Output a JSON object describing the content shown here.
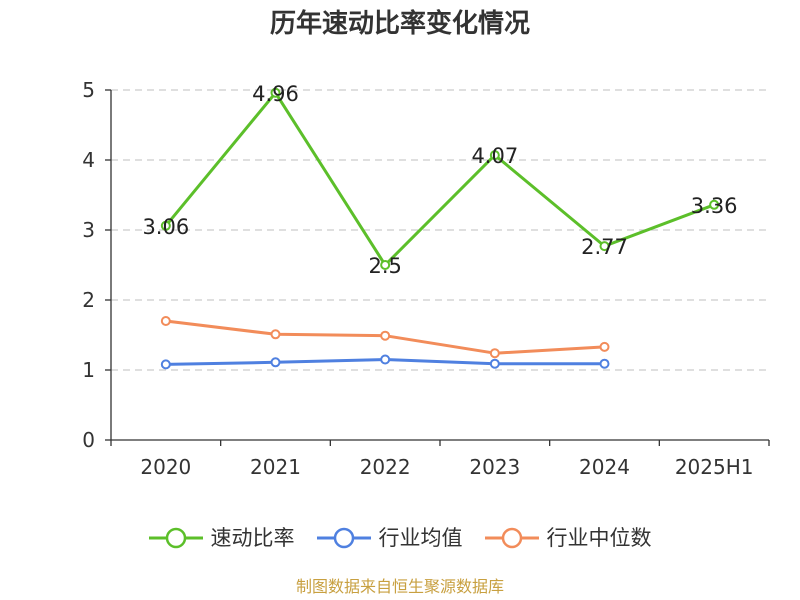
{
  "title": "历年速动比率变化情况",
  "footer": "制图数据来自恒生聚源数据库",
  "colors": {
    "grid": "#cccccc",
    "axis": "#333333",
    "footer": "#c8a040"
  },
  "chart_data": {
    "type": "line",
    "title": "历年速动比率变化情况",
    "categories": [
      "2020",
      "2021",
      "2022",
      "2023",
      "2024",
      "2025H1"
    ],
    "ylim": [
      0,
      5
    ],
    "yticks": [
      0,
      1,
      2,
      3,
      4,
      5
    ],
    "grid": true,
    "grid_style": "dashed horizontal",
    "legend_position": "bottom",
    "series": [
      {
        "name": "速动比率",
        "color": "#5cbf2a",
        "values": [
          3.06,
          4.96,
          2.5,
          4.07,
          2.77,
          3.36
        ],
        "labels": [
          "3.06",
          "4.96",
          "2.5",
          "4.07",
          "2.77",
          "3.36"
        ],
        "show_labels": true
      },
      {
        "name": "行业均值",
        "color": "#4f80e0",
        "values": [
          1.08,
          1.11,
          1.15,
          1.09,
          1.09,
          null
        ],
        "show_labels": false
      },
      {
        "name": "行业中位数",
        "color": "#f28c5a",
        "values": [
          1.7,
          1.51,
          1.49,
          1.24,
          1.33,
          null
        ],
        "show_labels": false
      }
    ]
  }
}
